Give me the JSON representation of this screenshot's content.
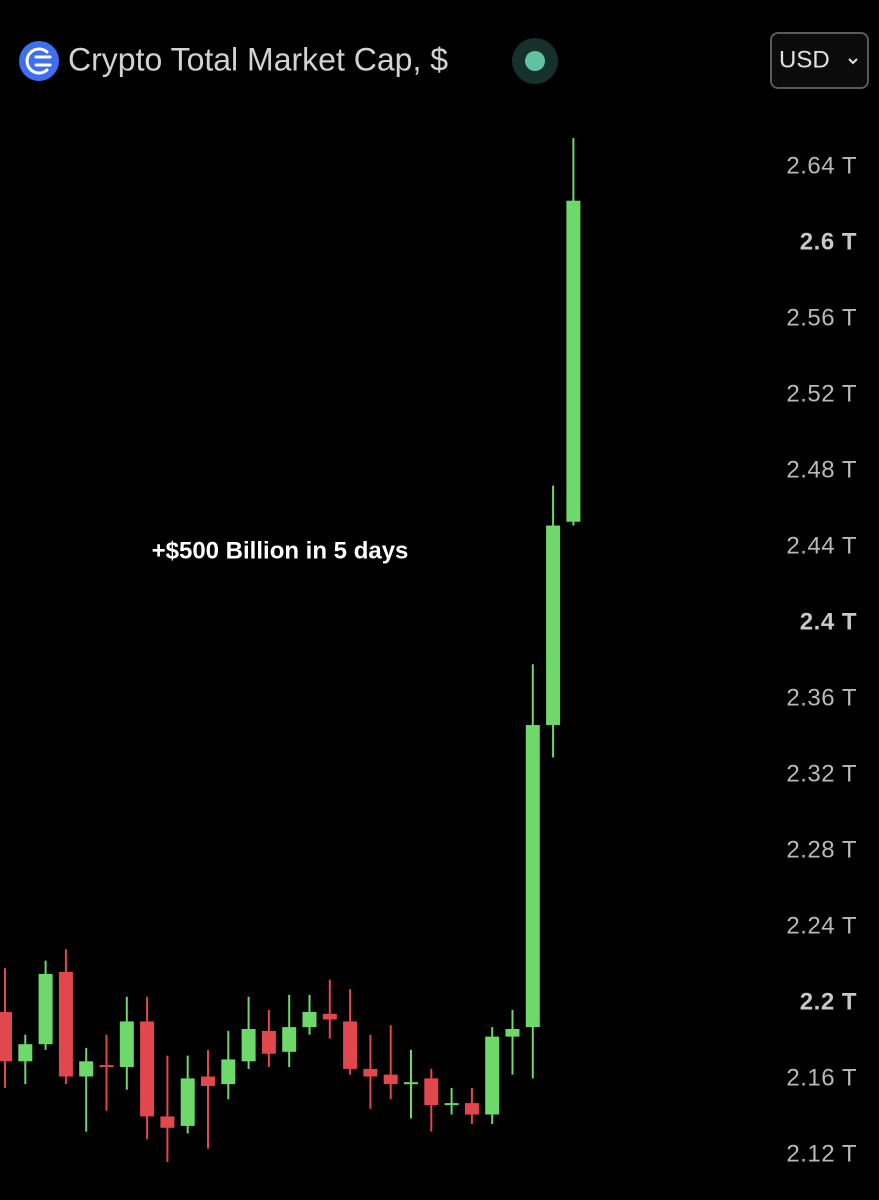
{
  "chart_data": {
    "type": "candlestick",
    "title": "Crypto Total Market Cap, $",
    "currency": "USD",
    "annotation": "+$500 Billion in 5 days",
    "up_color": "#6fd86a",
    "down_color": "#e2474e",
    "open": [
      2.196,
      2.17,
      2.179,
      2.217,
      2.162,
      2.168,
      2.167,
      2.191,
      2.141,
      2.136,
      2.162,
      2.158,
      2.17,
      2.186,
      2.175,
      2.188,
      2.195,
      2.191,
      2.166,
      2.163,
      2.158,
      2.161,
      2.147,
      2.148,
      2.142,
      2.183,
      2.188,
      2.347,
      2.454
    ],
    "high": [
      2.219,
      2.184,
      2.223,
      2.229,
      2.177,
      2.184,
      2.204,
      2.204,
      2.173,
      2.173,
      2.176,
      2.186,
      2.204,
      2.197,
      2.205,
      2.205,
      2.213,
      2.208,
      2.184,
      2.189,
      2.176,
      2.166,
      2.156,
      2.156,
      2.188,
      2.197,
      2.379,
      2.473,
      2.656
    ],
    "low": [
      2.156,
      2.158,
      2.176,
      2.158,
      2.133,
      2.144,
      2.155,
      2.129,
      2.117,
      2.132,
      2.124,
      2.15,
      2.166,
      2.167,
      2.167,
      2.184,
      2.182,
      2.163,
      2.145,
      2.15,
      2.14,
      2.133,
      2.142,
      2.137,
      2.137,
      2.163,
      2.161,
      2.33,
      2.452
    ],
    "close": [
      2.17,
      2.179,
      2.216,
      2.162,
      2.17,
      2.167,
      2.191,
      2.141,
      2.135,
      2.161,
      2.157,
      2.171,
      2.187,
      2.174,
      2.188,
      2.196,
      2.192,
      2.166,
      2.162,
      2.158,
      2.159,
      2.147,
      2.148,
      2.142,
      2.183,
      2.187,
      2.347,
      2.452,
      2.623
    ],
    "ylim": [
      2.097,
      2.676
    ],
    "yticks": [
      {
        "value": 2.64,
        "label": "2.64 T"
      },
      {
        "value": 2.6,
        "label": "2.6 T"
      },
      {
        "value": 2.56,
        "label": "2.56 T"
      },
      {
        "value": 2.52,
        "label": "2.52 T"
      },
      {
        "value": 2.48,
        "label": "2.48 T"
      },
      {
        "value": 2.44,
        "label": "2.44 T"
      },
      {
        "value": 2.4,
        "label": "2.4 T"
      },
      {
        "value": 2.36,
        "label": "2.36 T"
      },
      {
        "value": 2.32,
        "label": "2.32 T"
      },
      {
        "value": 2.28,
        "label": "2.28 T"
      },
      {
        "value": 2.24,
        "label": "2.24 T"
      },
      {
        "value": 2.2,
        "label": "2.2 T"
      },
      {
        "value": 2.16,
        "label": "2.16 T"
      },
      {
        "value": 2.12,
        "label": "2.12 T"
      }
    ]
  }
}
